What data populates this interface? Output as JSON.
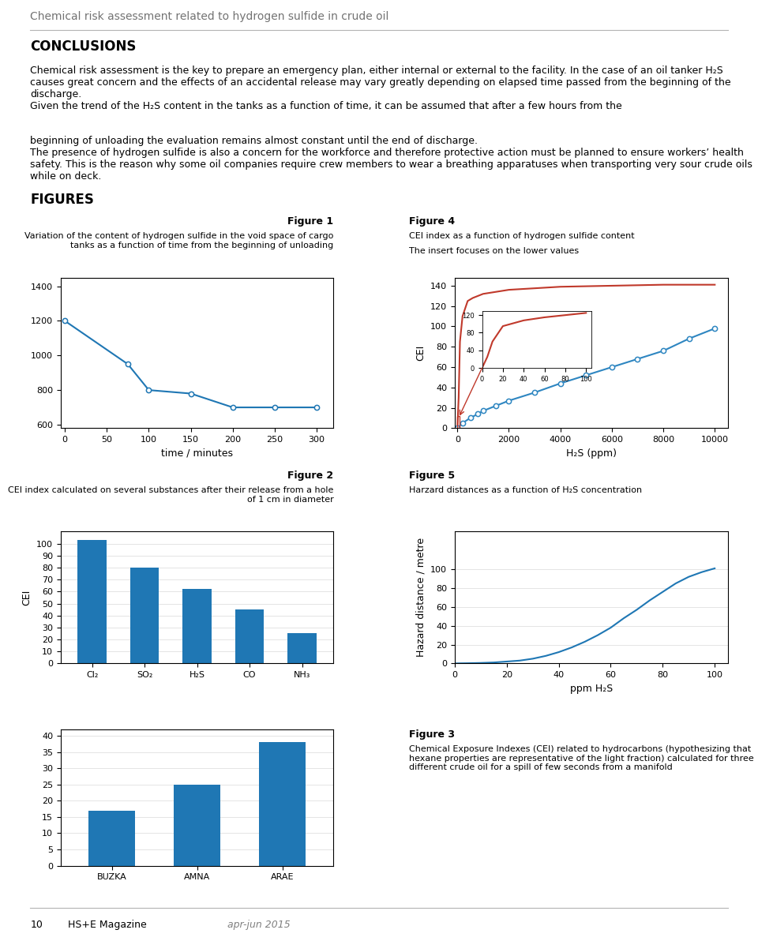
{
  "title": "Chemical risk assessment related to hydrogen sulfide in crude oil",
  "annotations": [
    "CONCLUSIONS",
    "Chemical risk assessment is the key to prepare an emergency plan, either internal or external to the facility. In the case of an oil tanker H₂S causes great concern and the effects of an accidental release may vary greatly depending on elapsed time passed from the beginning of the discharge.\nGiven the trend of the H₂S content in the tanks as a function of time, it can be assumed that after a few hours from the",
    "beginning of unloading the evaluation remains almost constant until the end of discharge.\nThe presence of hydrogen sulfide is also a concern for the workforce and therefore protective action must be planned to ensure workers’ health safety. This is the reason why some oil companies require crew members to wear a breathing apparatuses when transporting very sour crude oils while on deck.",
    "FIGURES",
    "10",
    "HS+E Magazine",
    "apr-jun 2015"
  ],
  "chart_data": [
    {
      "type": "line",
      "title": "Figure 1",
      "subtitle": "Variation of the content of hydrogen sulfide in the void space of cargo tanks as a function of time from the beginning of unloading",
      "x": [
        0,
        75,
        100,
        150,
        200,
        250,
        300
      ],
      "values": [
        1200,
        950,
        800,
        780,
        700,
        700,
        700
      ],
      "marker": "circle",
      "xlabel": "time / minutes",
      "xlim": [
        -5,
        320
      ],
      "xticks": [
        0,
        50,
        100,
        150,
        200,
        250,
        300
      ],
      "ylim": [
        580,
        1450
      ],
      "yticks": [
        600,
        800,
        1000,
        1200,
        1400
      ]
    },
    {
      "type": "line",
      "title": "Figure 4",
      "subtitle": "CEI index as a function of hydrogen sulfide content",
      "annotations": [
        "The insert focuses on the lower values"
      ],
      "series": [
        {
          "color": "#c0392b",
          "x": [
            0,
            50,
            100,
            200,
            400,
            600,
            800,
            1000,
            2000,
            4000,
            6000,
            8000,
            10000
          ],
          "values": [
            0,
            30,
            85,
            110,
            125,
            128,
            130,
            132,
            136,
            139,
            140,
            141,
            141
          ]
        },
        {
          "color": "#2e86c1",
          "marker": "circle",
          "x": [
            0,
            200,
            500,
            800,
            1000,
            1500,
            2000,
            3000,
            4000,
            5000,
            6000,
            7000,
            8000,
            9000,
            10000
          ],
          "values": [
            0,
            5,
            10,
            14,
            17,
            22,
            27,
            35,
            44,
            52,
            60,
            68,
            76,
            88,
            98
          ]
        }
      ],
      "xlabel": "H₂S (ppm)",
      "ylabel": "CEI",
      "xlim": [
        -100,
        10500
      ],
      "xticks": [
        0,
        2000,
        4000,
        6000,
        8000,
        10000
      ],
      "ylim": [
        0,
        148
      ],
      "yticks": [
        0,
        20,
        40,
        60,
        80,
        100,
        120,
        140
      ],
      "zoom_box": {
        "x": [
          0,
          80
        ],
        "y": [
          0,
          12
        ],
        "color": "#c0392b"
      },
      "inset": {
        "type": "line",
        "x": [
          0,
          5,
          10,
          20,
          40,
          60,
          80,
          100
        ],
        "values": [
          0,
          25,
          60,
          95,
          108,
          115,
          120,
          125
        ],
        "color": "#c0392b",
        "xlim": [
          0,
          105
        ],
        "xticks": [
          0,
          20,
          40,
          60,
          80,
          100
        ],
        "ylim": [
          0,
          130
        ],
        "yticks": [
          0,
          40,
          80,
          120
        ]
      }
    },
    {
      "type": "bar",
      "title": "Figure 2",
      "subtitle": "CEI index calculated on several substances after their release from a hole of 1 cm in diameter",
      "categories": [
        "Cl₂",
        "SO₂",
        "H₂S",
        "CO",
        "NH₃"
      ],
      "values": [
        103,
        80,
        62,
        45,
        25
      ],
      "ylabel": "CEI",
      "ylim": [
        0,
        110
      ],
      "yticks": [
        0,
        10,
        20,
        30,
        40,
        50,
        60,
        70,
        80,
        90,
        100
      ],
      "grid": "y"
    },
    {
      "type": "line",
      "title": "Figure 5",
      "subtitle": "Harzard distances as a function of H₂S concentration",
      "x": [
        0,
        5,
        10,
        15,
        20,
        25,
        30,
        35,
        40,
        45,
        50,
        55,
        60,
        65,
        70,
        75,
        80,
        85,
        90,
        95,
        100
      ],
      "values": [
        0,
        0.2,
        0.5,
        1,
        2,
        3,
        5,
        8,
        12,
        17,
        23,
        30,
        38,
        48,
        57,
        67,
        76,
        85,
        92,
        97,
        101
      ],
      "xlabel": "ppm H₂S",
      "ylabel": "Hazard distance / metre",
      "xlim": [
        0,
        105
      ],
      "xticks": [
        0,
        20,
        40,
        60,
        80,
        100
      ],
      "ylim": [
        0,
        140
      ],
      "yticks": [
        0,
        20,
        40,
        60,
        80,
        100
      ],
      "grid": "y"
    },
    {
      "type": "bar",
      "title": "Figure 3",
      "subtitle": "Chemical Exposure Indexes (CEI) related to hydrocarbons (hypothesizing that hexane properties are representative of the light fraction) calculated for three different crude oil for a spill of few seconds from a manifold",
      "categories": [
        "BUZKA",
        "AMNA",
        "ARAE"
      ],
      "values": [
        17,
        25,
        38
      ],
      "ylim": [
        0,
        42
      ],
      "yticks": [
        0,
        5,
        10,
        15,
        20,
        25,
        30,
        35,
        40
      ],
      "grid": "y"
    }
  ]
}
